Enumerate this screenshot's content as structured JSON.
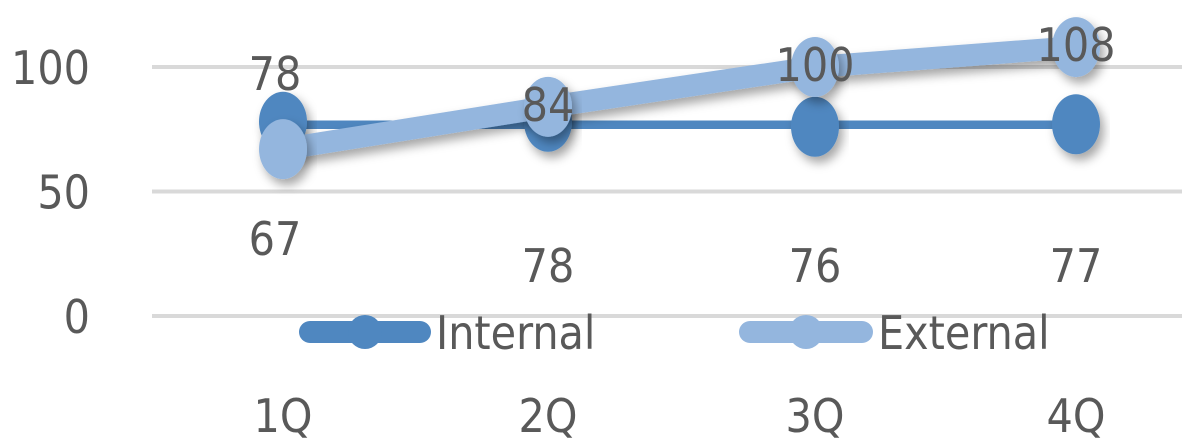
{
  "chart_data": {
    "type": "line",
    "categories": [
      "1Q",
      "2Q",
      "3Q",
      "4Q"
    ],
    "series": [
      {
        "name": "Internal",
        "values": [
          78,
          78,
          76,
          77
        ],
        "color": "#4f87c0"
      },
      {
        "name": "External",
        "values": [
          67,
          84,
          100,
          108
        ],
        "color": "#94b6de"
      }
    ],
    "data_labels": {
      "Internal": [
        "78",
        "78",
        "76",
        "77"
      ],
      "External": [
        "67",
        "84",
        "100",
        "108"
      ]
    },
    "y_ticks": [
      "0",
      "50",
      "100"
    ],
    "ylim": [
      0,
      100
    ],
    "grid": true,
    "legend_position": "bottom",
    "title": "",
    "xlabel": "",
    "ylabel": ""
  }
}
